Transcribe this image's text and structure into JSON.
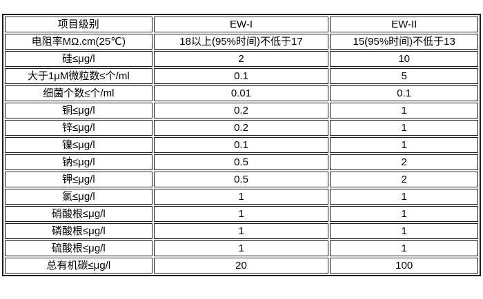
{
  "table": {
    "headers": [
      "项目级别",
      "EW-I",
      "EW-II"
    ],
    "rows": [
      [
        "电阻率MΩ.cm(25℃)",
        "18以上(95%时间)不低于17",
        "15(95%时间)不低于13"
      ],
      [
        "硅≤μg/l",
        "2",
        "10"
      ],
      [
        "大于1μM微粒数≤个/ml",
        "0.1",
        "5"
      ],
      [
        "细菌个数≤个/ml",
        "0.01",
        "0.1"
      ],
      [
        "铜≤μg/l",
        "0.2",
        "1"
      ],
      [
        "锌≤μg/l",
        "0.2",
        "1"
      ],
      [
        "镍≤μg/l",
        "0.1",
        "1"
      ],
      [
        "钠≤μg/l",
        "0.5",
        "2"
      ],
      [
        "钾≤μg/l",
        "0.5",
        "2"
      ],
      [
        "氯≤μg/l",
        "1",
        "1"
      ],
      [
        "硝酸根≤μg/l",
        "1",
        "1"
      ],
      [
        "磷酸根≤μg/l",
        "1",
        "1"
      ],
      [
        "硫酸根≤μg/l",
        "1",
        "1"
      ],
      [
        "总有机碳≤μg/l",
        "20",
        "100"
      ]
    ],
    "colors": {
      "border": "#1a1a1a",
      "text": "#000000",
      "background": "#ffffff"
    }
  }
}
